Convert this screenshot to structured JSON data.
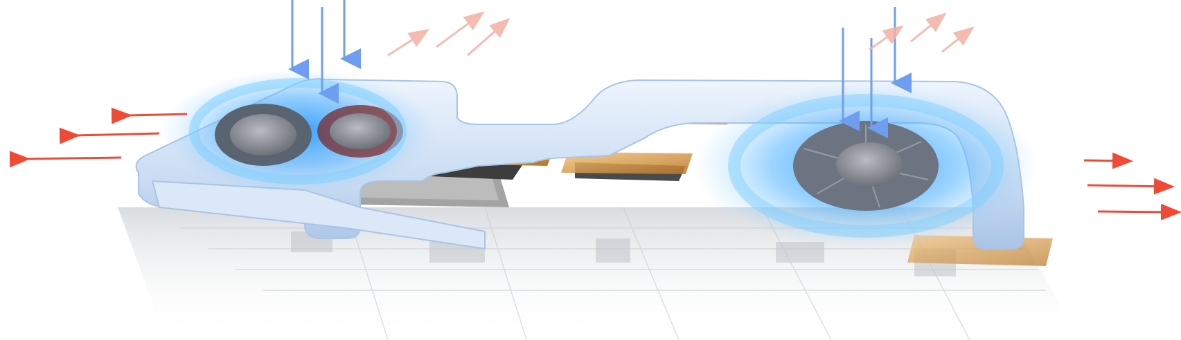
{
  "scene": {
    "subject": "laptop-cooling-system",
    "fans": [
      {
        "name": "left-fan-outer"
      },
      {
        "name": "left-fan-inner"
      },
      {
        "name": "right-fan"
      }
    ],
    "colors": {
      "background": "#ffffff",
      "heatpipe": "#c9dcf2",
      "heatpipe_edge": "#a9c4e6",
      "cool_glow": "#2f9bff",
      "intake_arrow": "#6f9ef0",
      "exhaust_arrow": "#ef4a36",
      "warm_arrow": "#f5b0a3",
      "copper": "#d99a3a",
      "pcb": "#e7e9ec",
      "chip": "#9a9a9a"
    }
  }
}
